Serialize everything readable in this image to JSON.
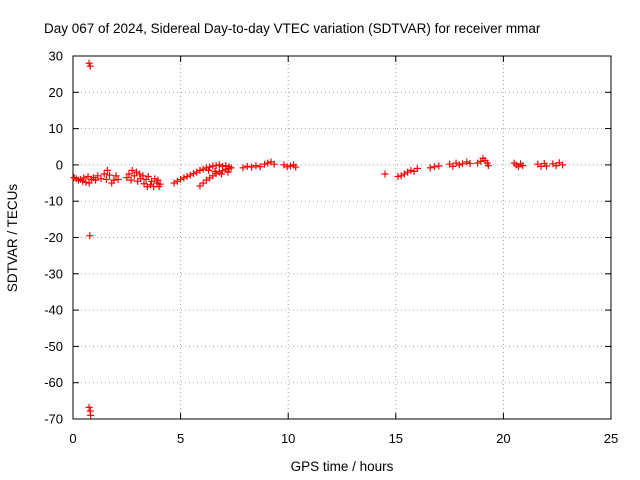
{
  "chart_data": {
    "type": "scatter",
    "title": "Day 067 of 2024, Sidereal Day-to-day VTEC variation (SDTVAR) for receiver mmar",
    "xlabel": "GPS time / hours",
    "ylabel": "SDTVAR / TECUs",
    "xlim": [
      0,
      25
    ],
    "ylim": [
      -70,
      30
    ],
    "xticks": [
      "0",
      "5",
      "10",
      "15",
      "20",
      "25"
    ],
    "yticks": [
      "30",
      "20",
      "10",
      "0",
      "-10",
      "-20",
      "-30",
      "-40",
      "-50",
      "-60",
      "-70"
    ],
    "grid": true,
    "marker": "plus",
    "color": "#ff0000",
    "series": [
      {
        "name": "SDTVAR",
        "points": [
          [
            0.05,
            -3.5
          ],
          [
            0.15,
            -3.8
          ],
          [
            0.25,
            -4.2
          ],
          [
            0.35,
            -4.0
          ],
          [
            0.45,
            -4.5
          ],
          [
            0.5,
            -3.6
          ],
          [
            0.6,
            -4.8
          ],
          [
            0.7,
            -3.2
          ],
          [
            0.75,
            -5.0
          ],
          [
            0.85,
            -4.0
          ],
          [
            0.95,
            -3.5
          ],
          [
            1.05,
            -4.2
          ],
          [
            1.15,
            -3.0
          ],
          [
            1.3,
            -3.8
          ],
          [
            1.45,
            -2.5
          ],
          [
            1.55,
            -4.0
          ],
          [
            1.6,
            -1.5
          ],
          [
            1.7,
            -2.8
          ],
          [
            1.8,
            -5.0
          ],
          [
            1.9,
            -4.2
          ],
          [
            2.0,
            -3.0
          ],
          [
            2.1,
            -4.0
          ],
          [
            2.5,
            -3.5
          ],
          [
            2.6,
            -2.5
          ],
          [
            2.7,
            -4.2
          ],
          [
            2.75,
            -1.5
          ],
          [
            2.85,
            -3.0
          ],
          [
            2.95,
            -2.0
          ],
          [
            3.0,
            -4.5
          ],
          [
            3.1,
            -2.5
          ],
          [
            3.15,
            -3.8
          ],
          [
            3.25,
            -3.0
          ],
          [
            3.3,
            -5.2
          ],
          [
            3.4,
            -4.0
          ],
          [
            3.45,
            -6.0
          ],
          [
            3.5,
            -3.2
          ],
          [
            3.6,
            -5.5
          ],
          [
            3.65,
            -4.5
          ],
          [
            3.75,
            -6.0
          ],
          [
            3.8,
            -3.8
          ],
          [
            3.9,
            -5.0
          ],
          [
            3.95,
            -4.2
          ],
          [
            4.0,
            -6.0
          ],
          [
            4.05,
            -5.3
          ],
          [
            4.7,
            -5.0
          ],
          [
            4.85,
            -4.5
          ],
          [
            5.0,
            -4.0
          ],
          [
            5.15,
            -3.6
          ],
          [
            5.3,
            -3.2
          ],
          [
            5.45,
            -2.8
          ],
          [
            5.6,
            -2.4
          ],
          [
            5.75,
            -2.0
          ],
          [
            5.9,
            -1.5
          ],
          [
            6.05,
            -1.2
          ],
          [
            6.2,
            -0.8
          ],
          [
            6.35,
            -0.6
          ],
          [
            6.5,
            -0.3
          ],
          [
            6.65,
            -0.2
          ],
          [
            6.8,
            0.0
          ],
          [
            6.95,
            -0.4
          ],
          [
            7.1,
            -0.2
          ],
          [
            7.25,
            -0.5
          ],
          [
            7.35,
            -0.8
          ],
          [
            5.9,
            -5.8
          ],
          [
            6.05,
            -5.0
          ],
          [
            6.2,
            -4.2
          ],
          [
            6.35,
            -3.6
          ],
          [
            6.5,
            -3.0
          ],
          [
            6.65,
            -2.4
          ],
          [
            6.8,
            -2.0
          ],
          [
            6.95,
            -1.6
          ],
          [
            7.1,
            -1.2
          ],
          [
            7.25,
            -1.0
          ],
          [
            6.3,
            -1.5
          ],
          [
            6.6,
            -1.8
          ],
          [
            6.9,
            -2.5
          ],
          [
            7.2,
            -2.0
          ],
          [
            7.9,
            -0.8
          ],
          [
            8.1,
            -0.4
          ],
          [
            8.3,
            -0.6
          ],
          [
            8.5,
            -0.2
          ],
          [
            8.7,
            -0.5
          ],
          [
            8.9,
            0.2
          ],
          [
            9.05,
            0.5
          ],
          [
            9.2,
            0.8
          ],
          [
            9.35,
            0.2
          ],
          [
            9.8,
            0.0
          ],
          [
            9.95,
            -0.5
          ],
          [
            10.1,
            -0.3
          ],
          [
            10.25,
            0.0
          ],
          [
            10.35,
            -0.6
          ],
          [
            0.75,
            28.0
          ],
          [
            0.8,
            27.2
          ],
          [
            0.78,
            -19.5
          ],
          [
            0.75,
            -66.8
          ],
          [
            0.8,
            -67.8
          ],
          [
            0.82,
            -69.0
          ],
          [
            14.5,
            -2.5
          ],
          [
            15.1,
            -3.2
          ],
          [
            15.25,
            -3.0
          ],
          [
            15.4,
            -2.5
          ],
          [
            15.55,
            -2.0
          ],
          [
            15.7,
            -1.5
          ],
          [
            15.85,
            -1.8
          ],
          [
            16.0,
            -1.0
          ],
          [
            16.6,
            -0.8
          ],
          [
            16.8,
            -0.5
          ],
          [
            17.0,
            -0.3
          ],
          [
            17.5,
            0.2
          ],
          [
            17.65,
            -0.4
          ],
          [
            17.8,
            0.5
          ],
          [
            17.95,
            0.0
          ],
          [
            18.1,
            0.3
          ],
          [
            18.3,
            0.8
          ],
          [
            18.45,
            0.4
          ],
          [
            18.8,
            0.5
          ],
          [
            18.95,
            1.0
          ],
          [
            19.05,
            1.8
          ],
          [
            19.15,
            1.2
          ],
          [
            19.25,
            0.5
          ],
          [
            19.3,
            -0.2
          ],
          [
            20.5,
            0.5
          ],
          [
            20.6,
            0.0
          ],
          [
            20.7,
            -0.5
          ],
          [
            20.8,
            0.3
          ],
          [
            20.9,
            -0.2
          ],
          [
            21.6,
            0.2
          ],
          [
            21.75,
            -0.4
          ],
          [
            21.9,
            0.4
          ],
          [
            22.0,
            -0.3
          ],
          [
            22.3,
            0.3
          ],
          [
            22.45,
            -0.2
          ],
          [
            22.6,
            0.6
          ],
          [
            22.75,
            0.0
          ]
        ]
      }
    ]
  }
}
